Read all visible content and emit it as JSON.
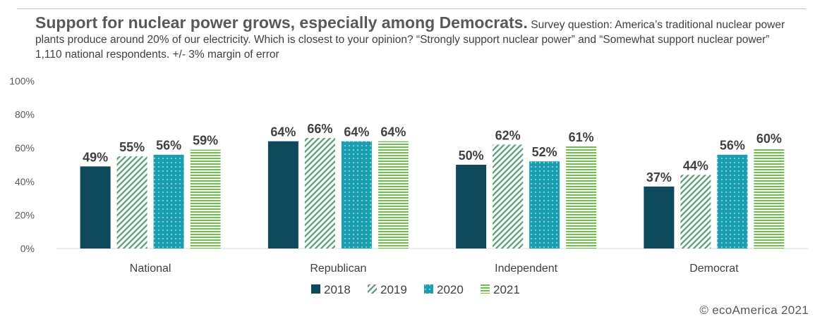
{
  "header": {
    "title": "Support for nuclear power grows, especially among Democrats.",
    "subtitle": "Survey question: America’s traditional nuclear power plants produce around 20% of our electricity. Which is closest to your opinion? “Strongly support nuclear power” and “Somewhat support nuclear power” 1,110 national respondents. +/- 3% margin of error"
  },
  "footer": {
    "credit": "© ecoAmerica 2021"
  },
  "chart_data": {
    "type": "bar",
    "categories": [
      "National",
      "Republican",
      "Independent",
      "Democrat"
    ],
    "series": [
      {
        "name": "2018",
        "values": [
          49,
          64,
          50,
          37
        ],
        "color": "#0d4a5e",
        "pattern": "solid"
      },
      {
        "name": "2019",
        "values": [
          55,
          66,
          62,
          44
        ],
        "color": "#5e9e7e",
        "pattern": "diagonal-stripes"
      },
      {
        "name": "2020",
        "values": [
          56,
          64,
          52,
          56
        ],
        "color": "#1a9fb0",
        "pattern": "dots"
      },
      {
        "name": "2021",
        "values": [
          59,
          64,
          61,
          60
        ],
        "color": "#6cc04a",
        "pattern": "horizontal-stripes"
      }
    ],
    "value_suffix": "%",
    "yticks": [
      "0%",
      "20%",
      "40%",
      "60%",
      "80%",
      "100%"
    ],
    "ylim": [
      0,
      100
    ],
    "grid": false,
    "legend_position": "bottom"
  }
}
